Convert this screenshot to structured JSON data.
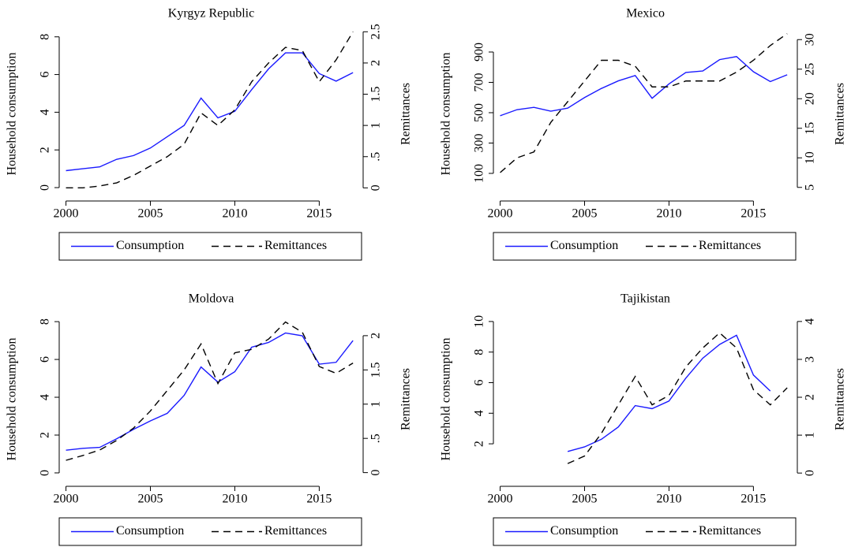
{
  "chart_data": [
    {
      "type": "line",
      "title": "Kyrgyz Republic",
      "ylabel": "Household consumption",
      "y2label": "Remittances",
      "x": [
        2000,
        2001,
        2002,
        2003,
        2004,
        2005,
        2006,
        2007,
        2008,
        2009,
        2010,
        2011,
        2012,
        2013,
        2014,
        2015,
        2016,
        2017
      ],
      "xlim": [
        1999.6,
        2017.6
      ],
      "xticks": [
        2000,
        2005,
        2010,
        2015
      ],
      "ylim": [
        -0.71,
        8.7
      ],
      "yticks": [
        0,
        2,
        4,
        6,
        8
      ],
      "y2lim": [
        -0.21,
        2.63
      ],
      "y2ticks": [
        0,
        {
          "value": 0.5,
          "label": ".5"
        },
        1,
        1.5,
        2,
        2.5
      ],
      "legend": "bottom",
      "series": [
        {
          "name": "Consumption",
          "color": "#1a1aff",
          "linestyle": "solid",
          "values": [
            0.9,
            1.0,
            1.1,
            1.5,
            1.7,
            2.1,
            2.7,
            3.3,
            4.75,
            3.7,
            4.05,
            5.2,
            6.3,
            7.15,
            7.15,
            6.05,
            5.65,
            6.1
          ]
        },
        {
          "name": "Remittances",
          "color": "#000000",
          "linestyle": "dashed",
          "axis": "y2",
          "values": [
            0,
            0,
            0.03,
            0.08,
            0.2,
            0.35,
            0.5,
            0.7,
            1.2,
            1.0,
            1.25,
            1.7,
            2.0,
            2.25,
            2.2,
            1.7,
            2.05,
            2.5
          ]
        }
      ]
    },
    {
      "type": "line",
      "title": "Mexico",
      "ylabel": "Household consumption",
      "y2label": "Remittances",
      "x": [
        2000,
        2001,
        2002,
        2003,
        2004,
        2005,
        2006,
        2007,
        2008,
        2009,
        2010,
        2011,
        2012,
        2013,
        2014,
        2015,
        2016,
        2017
      ],
      "xlim": [
        1999.6,
        2017.6
      ],
      "xticks": [
        2000,
        2005,
        2010,
        2015
      ],
      "ylim": [
        -82,
        1087
      ],
      "yticks": [
        100,
        300,
        500,
        700,
        900
      ],
      "y2lim": [
        2.7,
        32.7
      ],
      "y2ticks": [
        5,
        10,
        15,
        20,
        25,
        30
      ],
      "legend": "bottom",
      "series": [
        {
          "name": "Consumption",
          "color": "#1a1aff",
          "linestyle": "solid",
          "values": [
            480,
            520,
            535,
            510,
            530,
            600,
            660,
            710,
            745,
            595,
            690,
            765,
            775,
            850,
            870,
            770,
            705,
            750
          ]
        },
        {
          "name": "Remittances",
          "color": "#000000",
          "linestyle": "dashed",
          "axis": "y2",
          "values": [
            7.5,
            10,
            11,
            16,
            19.5,
            23,
            26.5,
            26.5,
            25.5,
            22,
            22,
            23,
            23,
            23,
            24.5,
            26.5,
            29,
            31
          ]
        }
      ]
    },
    {
      "type": "line",
      "title": "Moldova",
      "ylabel": "Household consumption",
      "y2label": "Remittances",
      "x": [
        2000,
        2001,
        2002,
        2003,
        2004,
        2005,
        2006,
        2007,
        2008,
        2009,
        2010,
        2011,
        2012,
        2013,
        2014,
        2015,
        2016,
        2017
      ],
      "xlim": [
        1999.6,
        2017.6
      ],
      "xticks": [
        2000,
        2005,
        2010,
        2015
      ],
      "ylim": [
        -0.71,
        8.67
      ],
      "yticks": [
        0,
        2,
        4,
        6,
        8
      ],
      "y2lim": [
        -0.2,
        2.39
      ],
      "y2ticks": [
        0,
        {
          "value": 0.5,
          "label": ".5"
        },
        1,
        1.5,
        2
      ],
      "legend": "bottom",
      "series": [
        {
          "name": "Consumption",
          "color": "#1a1aff",
          "linestyle": "solid",
          "values": [
            1.2,
            1.3,
            1.35,
            1.8,
            2.3,
            2.75,
            3.15,
            4.1,
            5.6,
            4.8,
            5.35,
            6.65,
            6.9,
            7.4,
            7.25,
            5.75,
            5.85,
            7.0
          ]
        },
        {
          "name": "Remittances",
          "color": "#000000",
          "linestyle": "dashed",
          "axis": "y2",
          "values": [
            0.18,
            0.25,
            0.33,
            0.47,
            0.65,
            0.9,
            1.2,
            1.5,
            1.88,
            1.3,
            1.75,
            1.8,
            1.95,
            2.2,
            2.05,
            1.55,
            1.45,
            1.6
          ]
        }
      ]
    },
    {
      "type": "line",
      "title": "Tajikistan",
      "ylabel": "Household consumption",
      "y2label": "Remittances",
      "x": [
        2000,
        2001,
        2002,
        2003,
        2004,
        2005,
        2006,
        2007,
        2008,
        2009,
        2010,
        2011,
        2012,
        2013,
        2014,
        2015,
        2016,
        2017
      ],
      "xlim": [
        1999.6,
        2017.6
      ],
      "xticks": [
        2000,
        2005,
        2010,
        2015
      ],
      "ylim": [
        -0.78,
        10.82
      ],
      "yticks": [
        2,
        4,
        6,
        8,
        10
      ],
      "y2lim": [
        -0.35,
        4.33
      ],
      "y2ticks": [
        0,
        1,
        2,
        3,
        4
      ],
      "legend": "bottom",
      "series": [
        {
          "name": "Consumption",
          "color": "#1a1aff",
          "linestyle": "solid",
          "values": [
            null,
            null,
            null,
            null,
            1.5,
            1.8,
            2.3,
            3.1,
            4.5,
            4.3,
            4.8,
            6.3,
            7.6,
            8.5,
            9.1,
            6.5,
            5.45,
            null
          ]
        },
        {
          "name": "Remittances",
          "color": "#000000",
          "linestyle": "dashed",
          "axis": "y2",
          "values": [
            null,
            null,
            null,
            null,
            0.25,
            0.45,
            1.05,
            1.8,
            2.55,
            1.8,
            2.05,
            2.8,
            3.3,
            3.7,
            3.3,
            2.2,
            1.8,
            2.25
          ]
        }
      ]
    }
  ]
}
